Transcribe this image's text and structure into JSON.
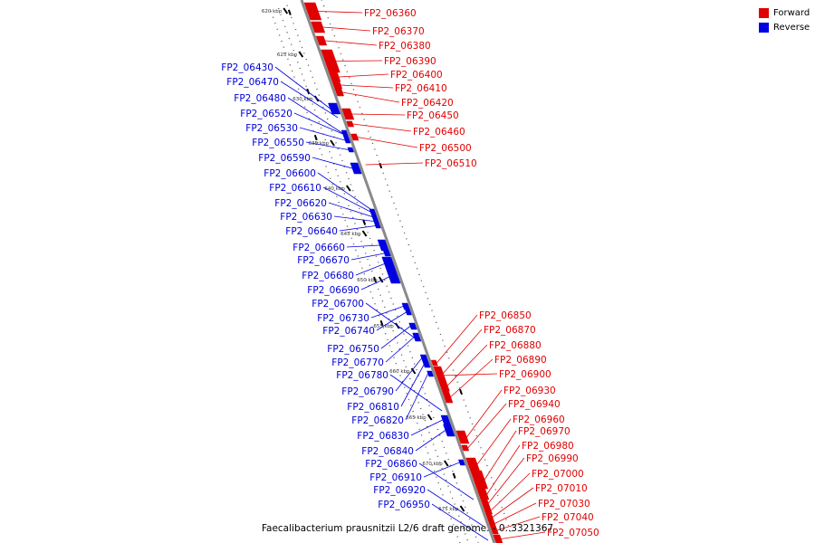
{
  "caption": "Faecalibacterium prausnitzii L2/6 draft genome. - 0..3321367",
  "legend": [
    {
      "label": "Forward",
      "color": "#e00000"
    },
    {
      "label": "Reverse",
      "color": "#0000e0"
    }
  ],
  "ticks": [
    "620 kbp",
    "625 kbp",
    "630 kbp",
    "635 kbp",
    "640 kbp",
    "645 kbp",
    "650 kbp",
    "655 kbp",
    "660 kbp",
    "665 kbp",
    "670 kbp",
    "675 kbp"
  ],
  "forward_genes": [
    "FP2_06360",
    "FP2_06370",
    "FP2_06380",
    "FP2_06390",
    "FP2_06400",
    "FP2_06410",
    "FP2_06420",
    "FP2_06450",
    "FP2_06460",
    "FP2_06500",
    "FP2_06510",
    "FP2_06850",
    "FP2_06870",
    "FP2_06880",
    "FP2_06890",
    "FP2_06900",
    "FP2_06930",
    "FP2_06940",
    "FP2_06960",
    "FP2_06970",
    "FP2_06980",
    "FP2_06990",
    "FP2_07000",
    "FP2_07010",
    "FP2_07030",
    "FP2_07040",
    "FP2_07050"
  ],
  "reverse_genes": [
    "FP2_06430",
    "FP2_06470",
    "FP2_06480",
    "FP2_06520",
    "FP2_06530",
    "FP2_06550",
    "FP2_06590",
    "FP2_06600",
    "FP2_06610",
    "FP2_06620",
    "FP2_06630",
    "FP2_06640",
    "FP2_06660",
    "FP2_06670",
    "FP2_06680",
    "FP2_06690",
    "FP2_06700",
    "FP2_06730",
    "FP2_06740",
    "FP2_06750",
    "FP2_06770",
    "FP2_06780",
    "FP2_06790",
    "FP2_06810",
    "FP2_06820",
    "FP2_06830",
    "FP2_06840",
    "FP2_06860",
    "FP2_06910",
    "FP2_06920",
    "FP2_06950"
  ]
}
